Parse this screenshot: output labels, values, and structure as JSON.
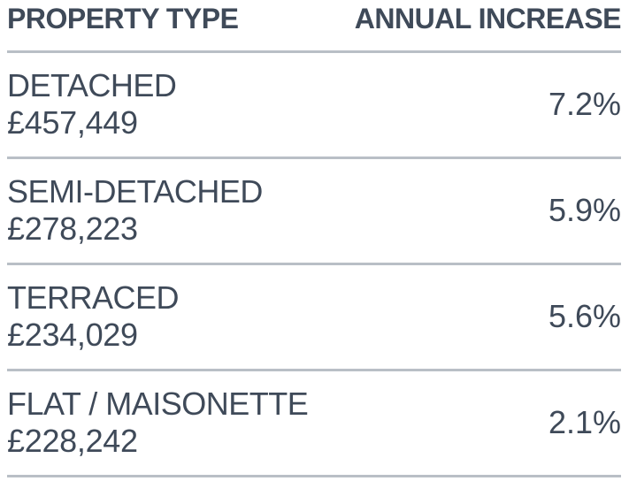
{
  "table": {
    "headers": {
      "property_type": "PROPERTY TYPE",
      "annual_increase": "ANNUAL INCREASE"
    },
    "rows": [
      {
        "type": "DETACHED",
        "price": "£457,449",
        "increase": "7.2%"
      },
      {
        "type": "SEMI-DETACHED",
        "price": "£278,223",
        "increase": "5.9%"
      },
      {
        "type": "TERRACED",
        "price": "£234,029",
        "increase": "5.6%"
      },
      {
        "type": "FLAT / MAISONETTE",
        "price": "£228,242",
        "increase": "2.1%"
      }
    ]
  },
  "colors": {
    "text": "#3f4a59",
    "divider": "#b9bfc6",
    "background": "#ffffff"
  }
}
